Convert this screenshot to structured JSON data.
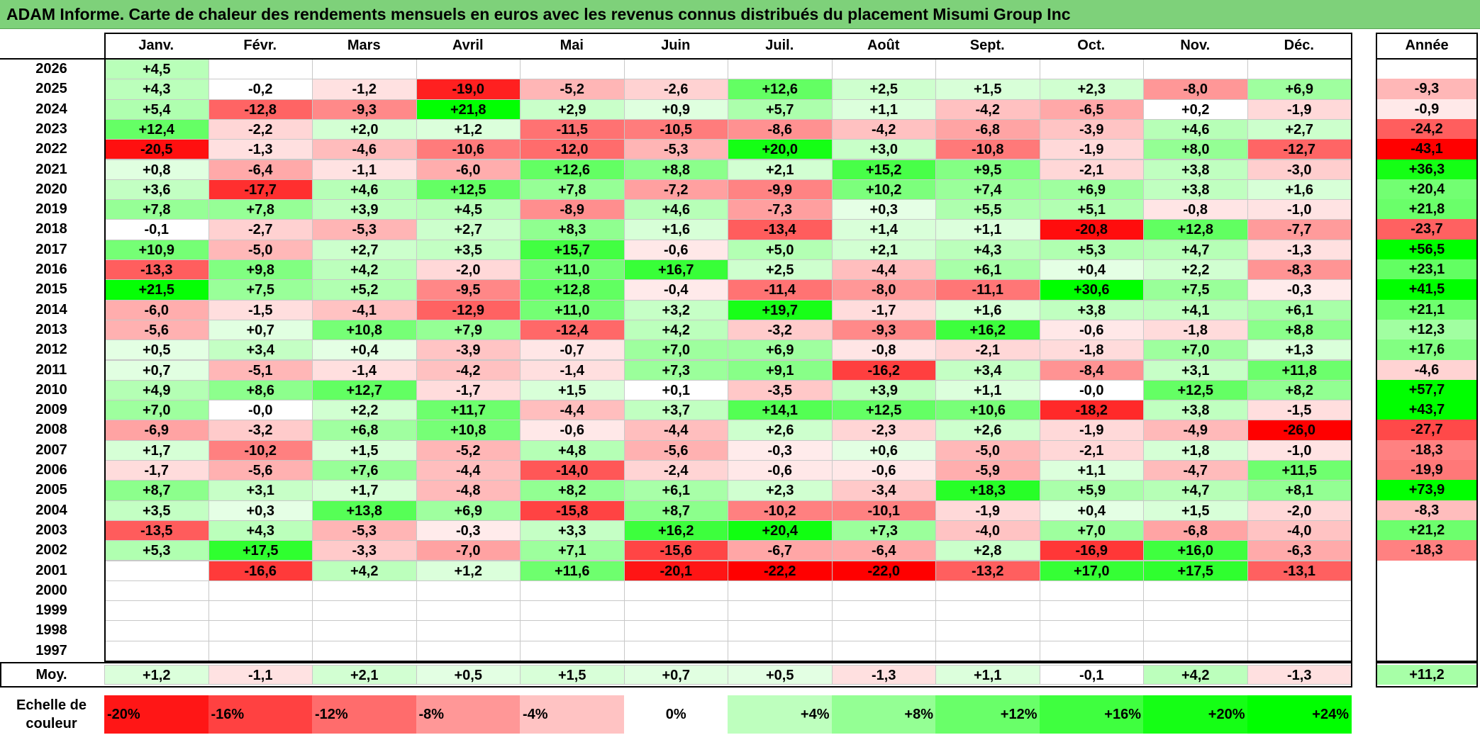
{
  "title": "ADAM Informe. Carte de chaleur des rendements mensuels en euros avec les revenus connus distribués du placement Misumi Group Inc",
  "chart_data": {
    "type": "heatmap",
    "title": "ADAM Informe. Carte de chaleur des rendements mensuels en euros avec les revenus connus distribués du placement Misumi Group Inc",
    "months": [
      "Janv.",
      "Févr.",
      "Mars",
      "Avril",
      "Mai",
      "Juin",
      "Juil.",
      "Août",
      "Sept.",
      "Oct.",
      "Nov.",
      "Déc."
    ],
    "year_header": "Année",
    "years": [
      "2026",
      "2025",
      "2024",
      "2023",
      "2022",
      "2021",
      "2020",
      "2019",
      "2018",
      "2017",
      "2016",
      "2015",
      "2014",
      "2013",
      "2012",
      "2011",
      "2010",
      "2009",
      "2008",
      "2007",
      "2006",
      "2005",
      "2004",
      "2003",
      "2002",
      "2001",
      "2000",
      "1999",
      "1998",
      "1997"
    ],
    "values": [
      [
        "+4,5",
        "",
        "",
        "",
        "",
        "",
        "",
        "",
        "",
        "",
        "",
        ""
      ],
      [
        "+4,3",
        "-0,2",
        "-1,2",
        "-19,0",
        "-5,2",
        "-2,6",
        "+12,6",
        "+2,5",
        "+1,5",
        "+2,3",
        "-8,0",
        "+6,9"
      ],
      [
        "+5,4",
        "-12,8",
        "-9,3",
        "+21,8",
        "+2,9",
        "+0,9",
        "+5,7",
        "+1,1",
        "-4,2",
        "-6,5",
        "+0,2",
        "-1,9"
      ],
      [
        "+12,4",
        "-2,2",
        "+2,0",
        "+1,2",
        "-11,5",
        "-10,5",
        "-8,6",
        "-4,2",
        "-6,8",
        "-3,9",
        "+4,6",
        "+2,7"
      ],
      [
        "-20,5",
        "-1,3",
        "-4,6",
        "-10,6",
        "-12,0",
        "-5,3",
        "+20,0",
        "+3,0",
        "-10,8",
        "-1,9",
        "+8,0",
        "-12,7"
      ],
      [
        "+0,8",
        "-6,4",
        "-1,1",
        "-6,0",
        "+12,6",
        "+8,8",
        "+2,1",
        "+15,2",
        "+9,5",
        "-2,1",
        "+3,8",
        "-3,0"
      ],
      [
        "+3,6",
        "-17,7",
        "+4,6",
        "+12,5",
        "+7,8",
        "-7,2",
        "-9,9",
        "+10,2",
        "+7,4",
        "+6,9",
        "+3,8",
        "+1,6"
      ],
      [
        "+7,8",
        "+7,8",
        "+3,9",
        "+4,5",
        "-8,9",
        "+4,6",
        "-7,3",
        "+0,3",
        "+5,5",
        "+5,1",
        "-0,8",
        "-1,0"
      ],
      [
        "-0,1",
        "-2,7",
        "-5,3",
        "+2,7",
        "+8,3",
        "+1,6",
        "-13,4",
        "+1,4",
        "+1,1",
        "-20,8",
        "+12,8",
        "-7,7"
      ],
      [
        "+10,9",
        "-5,0",
        "+2,7",
        "+3,5",
        "+15,7",
        "-0,6",
        "+5,0",
        "+2,1",
        "+4,3",
        "+5,3",
        "+4,7",
        "-1,3"
      ],
      [
        "-13,3",
        "+9,8",
        "+4,2",
        "-2,0",
        "+11,0",
        "+16,7",
        "+2,5",
        "-4,4",
        "+6,1",
        "+0,4",
        "+2,2",
        "-8,3"
      ],
      [
        "+21,5",
        "+7,5",
        "+5,2",
        "-9,5",
        "+12,8",
        "-0,4",
        "-11,4",
        "-8,0",
        "-11,1",
        "+30,6",
        "+7,5",
        "-0,3"
      ],
      [
        "-6,0",
        "-1,5",
        "-4,1",
        "-12,9",
        "+11,0",
        "+3,2",
        "+19,7",
        "-1,7",
        "+1,6",
        "+3,8",
        "+4,1",
        "+6,1"
      ],
      [
        "-5,6",
        "+0,7",
        "+10,8",
        "+7,9",
        "-12,4",
        "+4,2",
        "-3,2",
        "-9,3",
        "+16,2",
        "-0,6",
        "-1,8",
        "+8,8"
      ],
      [
        "+0,5",
        "+3,4",
        "+0,4",
        "-3,9",
        "-0,7",
        "+7,0",
        "+6,9",
        "-0,8",
        "-2,1",
        "-1,8",
        "+7,0",
        "+1,3"
      ],
      [
        "+0,7",
        "-5,1",
        "-1,4",
        "-4,2",
        "-1,4",
        "+7,3",
        "+9,1",
        "-16,2",
        "+3,4",
        "-8,4",
        "+3,1",
        "+11,8"
      ],
      [
        "+4,9",
        "+8,6",
        "+12,7",
        "-1,7",
        "+1,5",
        "+0,1",
        "-3,5",
        "+3,9",
        "+1,1",
        "-0,0",
        "+12,5",
        "+8,2"
      ],
      [
        "+7,0",
        "-0,0",
        "+2,2",
        "+11,7",
        "-4,4",
        "+3,7",
        "+14,1",
        "+12,5",
        "+10,6",
        "-18,2",
        "+3,8",
        "-1,5"
      ],
      [
        "-6,9",
        "-3,2",
        "+6,8",
        "+10,8",
        "-0,6",
        "-4,4",
        "+2,6",
        "-2,3",
        "+2,6",
        "-1,9",
        "-4,9",
        "-26,0"
      ],
      [
        "+1,7",
        "-10,2",
        "+1,5",
        "-5,2",
        "+4,8",
        "-5,6",
        "-0,3",
        "+0,6",
        "-5,0",
        "-2,1",
        "+1,8",
        "-1,0"
      ],
      [
        "-1,7",
        "-5,6",
        "+7,6",
        "-4,4",
        "-14,0",
        "-2,4",
        "-0,6",
        "-0,6",
        "-5,9",
        "+1,1",
        "-4,7",
        "+11,5"
      ],
      [
        "+8,7",
        "+3,1",
        "+1,7",
        "-4,8",
        "+8,2",
        "+6,1",
        "+2,3",
        "-3,4",
        "+18,3",
        "+5,9",
        "+4,7",
        "+8,1"
      ],
      [
        "+3,5",
        "+0,3",
        "+13,8",
        "+6,9",
        "-15,8",
        "+8,7",
        "-10,2",
        "-10,1",
        "-1,9",
        "+0,4",
        "+1,5",
        "-2,0"
      ],
      [
        "-13,5",
        "+4,3",
        "-5,3",
        "-0,3",
        "+3,3",
        "+16,2",
        "+20,4",
        "+7,3",
        "-4,0",
        "+7,0",
        "-6,8",
        "-4,0"
      ],
      [
        "+5,3",
        "+17,5",
        "-3,3",
        "-7,0",
        "+7,1",
        "-15,6",
        "-6,7",
        "-6,4",
        "+2,8",
        "-16,9",
        "+16,0",
        "-6,3"
      ],
      [
        "",
        "-16,6",
        "+4,2",
        "+1,2",
        "+11,6",
        "-20,1",
        "-22,2",
        "-22,0",
        "-13,2",
        "+17,0",
        "+17,5",
        "-13,1"
      ],
      [
        "",
        "",
        "",
        "",
        "",
        "",
        "",
        "",
        "",
        "",
        "",
        ""
      ],
      [
        "",
        "",
        "",
        "",
        "",
        "",
        "",
        "",
        "",
        "",
        "",
        ""
      ],
      [
        "",
        "",
        "",
        "",
        "",
        "",
        "",
        "",
        "",
        "",
        "",
        ""
      ],
      [
        "",
        "",
        "",
        "",
        "",
        "",
        "",
        "",
        "",
        "",
        "",
        ""
      ]
    ],
    "annual": [
      "",
      "-9,3",
      "-0,9",
      "-24,2",
      "-43,1",
      "+36,3",
      "+20,4",
      "+21,8",
      "-23,7",
      "+56,5",
      "+23,1",
      "+41,5",
      "+21,1",
      "+12,3",
      "+17,6",
      "-4,6",
      "+57,7",
      "+43,7",
      "-27,7",
      "-18,3",
      "-19,9",
      "+73,9",
      "-8,3",
      "+21,2",
      "-18,3",
      "",
      "",
      "",
      "",
      ""
    ],
    "average_label": "Moy.",
    "averages": [
      "+1,2",
      "-1,1",
      "+2,1",
      "+0,5",
      "+1,5",
      "+0,7",
      "+0,5",
      "-1,3",
      "+1,1",
      "-0,1",
      "+4,2",
      "-1,3"
    ],
    "average_annual": "+11,2",
    "scale_label": "Echelle de couleur",
    "scale": [
      "-20%",
      "-16%",
      "-12%",
      "-8%",
      "-4%",
      "0%",
      "+4%",
      "+8%",
      "+12%",
      "+16%",
      "+20%",
      "+24%"
    ],
    "scale_values": [
      -20,
      -16,
      -12,
      -8,
      -4,
      0,
      4,
      8,
      12,
      16,
      20,
      24
    ],
    "colors": {
      "negative": "#ff0000",
      "positive": "#00ff00",
      "neutral": "#ffffff",
      "title_bar": "#7ed17a"
    }
  }
}
